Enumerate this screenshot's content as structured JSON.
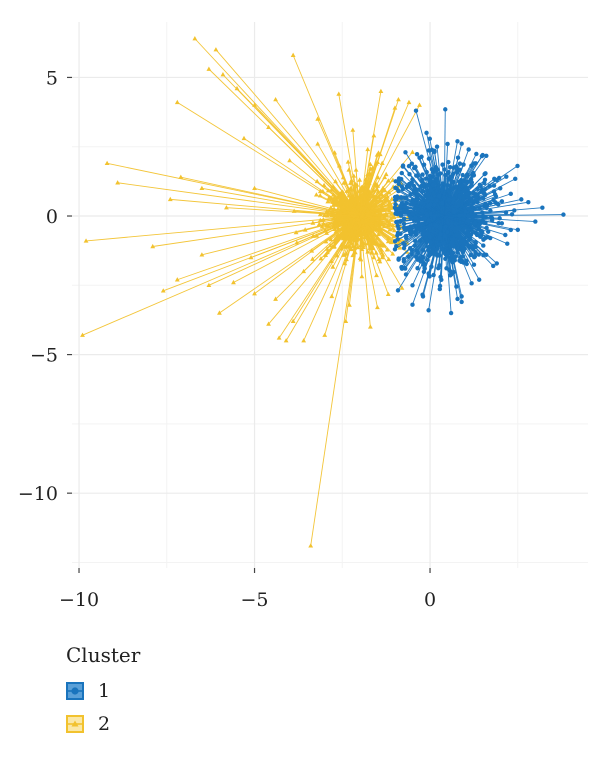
{
  "chart_data": {
    "type": "scatter",
    "title": "",
    "xlabel": "",
    "ylabel": "",
    "xlim": [
      -10.2,
      4.5
    ],
    "ylim": [
      -12.7,
      7.0
    ],
    "x_ticks": [
      -10,
      -5,
      0
    ],
    "y_ticks": [
      5,
      0,
      -5,
      -10
    ],
    "x_tick_labels": [
      "−10",
      "−5",
      "0"
    ],
    "y_tick_labels": [
      "5",
      "0",
      "−5",
      "−10"
    ],
    "grid": true,
    "legend_position": "bottom-left",
    "series": [
      {
        "name": "1",
        "color": "#1a74bd",
        "marker": "circle",
        "centroid": [
          0.4,
          0.0
        ],
        "points": [
          [
            3.8,
            0.05
          ],
          [
            3.2,
            0.3
          ],
          [
            2.6,
            0.6
          ],
          [
            3.0,
            -0.2
          ],
          [
            2.8,
            0.5
          ],
          [
            2.5,
            -0.5
          ],
          [
            2.3,
            0.8
          ],
          [
            2.2,
            -1.0
          ],
          [
            1.9,
            1.3
          ],
          [
            1.8,
            -1.8
          ],
          [
            1.5,
            2.2
          ],
          [
            1.4,
            -2.3
          ],
          [
            1.1,
            2.4
          ],
          [
            0.9,
            -2.9
          ],
          [
            0.6,
            -3.5
          ],
          [
            0.5,
            2.6
          ],
          [
            0.2,
            2.5
          ],
          [
            -0.1,
            3.0
          ],
          [
            -0.3,
            2.1
          ],
          [
            -0.5,
            -2.5
          ],
          [
            -0.6,
            1.8
          ],
          [
            -0.8,
            -1.9
          ],
          [
            -0.9,
            0.9
          ],
          [
            -1.0,
            -1.2
          ],
          [
            -1.0,
            0.3
          ],
          [
            -0.4,
            3.8
          ],
          [
            0.9,
            -3.1
          ],
          [
            -0.5,
            -3.2
          ],
          [
            0.3,
            -2.2
          ],
          [
            -0.7,
            2.3
          ],
          [
            1.3,
            1.9
          ],
          [
            1.6,
            -1.4
          ],
          [
            2.0,
            1.0
          ],
          [
            2.4,
            0.2
          ],
          [
            -0.2,
            -2.9
          ]
        ]
      },
      {
        "name": "2",
        "color": "#f2c22e",
        "marker": "triangle",
        "centroid": [
          -2.0,
          0.0
        ],
        "points": [
          [
            -6.7,
            6.4
          ],
          [
            -6.1,
            6.0
          ],
          [
            -3.9,
            5.8
          ],
          [
            -6.3,
            5.3
          ],
          [
            -5.9,
            5.1
          ],
          [
            -5.5,
            4.6
          ],
          [
            -7.2,
            4.1
          ],
          [
            -5.0,
            4.0
          ],
          [
            -4.4,
            4.2
          ],
          [
            -2.6,
            4.4
          ],
          [
            -1.4,
            4.5
          ],
          [
            -0.9,
            4.2
          ],
          [
            -0.6,
            4.1
          ],
          [
            -0.3,
            4.0
          ],
          [
            -1.0,
            3.9
          ],
          [
            -3.2,
            3.5
          ],
          [
            -4.6,
            3.2
          ],
          [
            -5.3,
            2.8
          ],
          [
            -9.2,
            1.9
          ],
          [
            -8.9,
            1.2
          ],
          [
            -7.1,
            1.4
          ],
          [
            -6.5,
            1.0
          ],
          [
            -5.0,
            1.0
          ],
          [
            -7.4,
            0.6
          ],
          [
            -5.8,
            0.3
          ],
          [
            -9.8,
            -0.9
          ],
          [
            -7.9,
            -1.1
          ],
          [
            -6.5,
            -1.4
          ],
          [
            -5.1,
            -1.5
          ],
          [
            -7.2,
            -2.3
          ],
          [
            -7.6,
            -2.7
          ],
          [
            -6.3,
            -2.5
          ],
          [
            -5.6,
            -2.4
          ],
          [
            -5.0,
            -2.8
          ],
          [
            -4.4,
            -3.0
          ],
          [
            -6.0,
            -3.5
          ],
          [
            -3.9,
            -3.8
          ],
          [
            -4.6,
            -3.9
          ],
          [
            -4.3,
            -4.4
          ],
          [
            -4.1,
            -4.5
          ],
          [
            -3.6,
            -4.5
          ],
          [
            -3.0,
            -4.3
          ],
          [
            -2.4,
            -3.8
          ],
          [
            -1.7,
            -4.0
          ],
          [
            -1.5,
            -3.3
          ],
          [
            -9.9,
            -4.3
          ],
          [
            -3.4,
            -11.9
          ],
          [
            -3.2,
            2.6
          ],
          [
            -2.2,
            3.1
          ],
          [
            -1.6,
            2.9
          ],
          [
            -4.0,
            2.0
          ],
          [
            -3.6,
            -2.0
          ],
          [
            -2.8,
            -2.9
          ],
          [
            -0.8,
            -2.6
          ],
          [
            -0.5,
            2.3
          ]
        ]
      }
    ]
  },
  "legend": {
    "title": "Cluster",
    "items": [
      {
        "label": "1",
        "color": "#1a74bd",
        "fill": "#5aa0d8",
        "marker": "circle"
      },
      {
        "label": "2",
        "color": "#f2c22e",
        "fill": "#fbe8a6",
        "marker": "triangle"
      }
    ]
  }
}
